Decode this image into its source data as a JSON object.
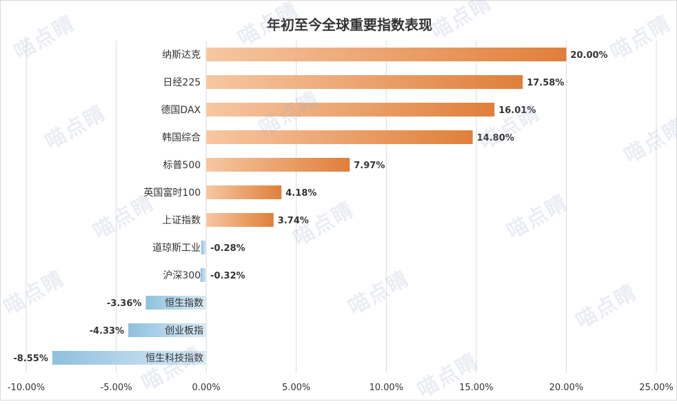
{
  "chart_data": {
    "type": "bar",
    "orientation": "horizontal",
    "title": "年初至今全球重要指数表现",
    "categories": [
      "纳斯达克",
      "日经225",
      "德国DAX",
      "韩国综合",
      "标普500",
      "英国富时100",
      "上证指数",
      "道琼斯工业",
      "沪深300",
      "恒生指数",
      "创业板指",
      "恒生科技指数"
    ],
    "values": [
      20.0,
      17.58,
      16.01,
      14.8,
      7.97,
      4.18,
      3.74,
      -0.28,
      -0.32,
      -3.36,
      -4.33,
      -8.55
    ],
    "value_labels": [
      "20.00%",
      "17.58%",
      "16.01%",
      "14.80%",
      "7.97%",
      "4.18%",
      "3.74%",
      "-0.28%",
      "-0.32%",
      "-3.36%",
      "-4.33%",
      "-8.55%"
    ],
    "xlim": [
      -10,
      25
    ],
    "x_ticks": [
      -10,
      -5,
      0,
      5,
      10,
      15,
      20,
      25
    ],
    "x_tick_labels": [
      "-10.00%",
      "-5.00%",
      "0.00%",
      "5.00%",
      "10.00%",
      "15.00%",
      "20.00%",
      "25.00%"
    ],
    "grid": "vertical",
    "colors": {
      "positive_start": "#f6c7a2",
      "positive_end": "#e07f3a",
      "negative_start": "#d9ebf6",
      "negative_end": "#8fc0de",
      "grid": "#d9d9d9",
      "text": "#333333"
    }
  },
  "watermark": {
    "text": "喵点睛"
  }
}
